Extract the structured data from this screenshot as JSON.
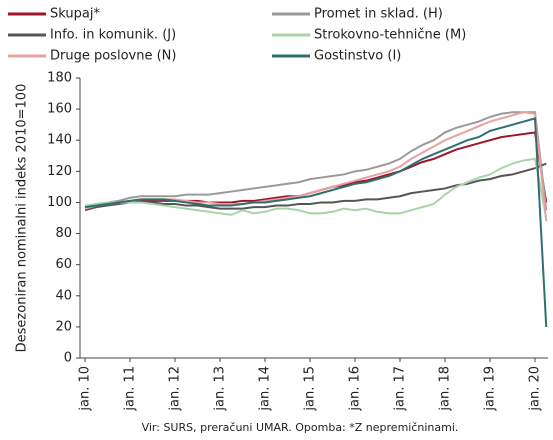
{
  "chart_data": {
    "type": "line",
    "y_label": "Desezoniran nominalni indeks 2010=100",
    "note": "Vir: SURS, preračuni UMAR. Opomba: *Z nepremičninami.",
    "categories": [
      "jan. 10",
      null,
      null,
      null,
      "jan. 11",
      null,
      null,
      null,
      "jan. 12",
      null,
      null,
      null,
      "jan. 13",
      null,
      null,
      null,
      "jan. 14",
      null,
      null,
      null,
      "jan. 15",
      null,
      null,
      null,
      "jan. 16",
      null,
      null,
      null,
      "jan. 17",
      null,
      null,
      null,
      "jan. 18",
      null,
      null,
      null,
      "jan. 19",
      null,
      null,
      null,
      "jan. 20",
      null
    ],
    "series": [
      {
        "name": "Skupaj*",
        "color": "#a0142c",
        "values": [
          97,
          98,
          99,
          100,
          100,
          101,
          101,
          101,
          101,
          101,
          101,
          100,
          100,
          100,
          101,
          101,
          102,
          103,
          104,
          104,
          106,
          108,
          110,
          111,
          113,
          114,
          116,
          118,
          120,
          123,
          126,
          128,
          131,
          134,
          136,
          138,
          140,
          142,
          143,
          144,
          145,
          100
        ]
      },
      {
        "name": "Promet in sklad. (H)",
        "color": "#9a9a9a",
        "values": [
          97,
          99,
          100,
          101,
          103,
          104,
          104,
          104,
          104,
          105,
          105,
          105,
          106,
          107,
          108,
          109,
          110,
          111,
          112,
          113,
          115,
          116,
          117,
          118,
          120,
          121,
          123,
          125,
          128,
          133,
          137,
          140,
          145,
          148,
          150,
          152,
          155,
          157,
          158,
          158,
          158,
          95
        ]
      },
      {
        "name": "Info. in komunik. (J)",
        "color": "#555555",
        "values": [
          95,
          97,
          98,
          99,
          100,
          100,
          100,
          99,
          99,
          98,
          98,
          97,
          96,
          96,
          96,
          97,
          97,
          98,
          98,
          99,
          99,
          100,
          100,
          101,
          101,
          102,
          102,
          103,
          104,
          106,
          107,
          108,
          109,
          111,
          112,
          114,
          115,
          117,
          118,
          120,
          122,
          125
        ]
      },
      {
        "name": "Strokovno-tehnične (M)",
        "color": "#a8d5a8",
        "values": [
          98,
          99,
          100,
          100,
          100,
          100,
          99,
          98,
          97,
          96,
          95,
          94,
          93,
          92,
          95,
          93,
          94,
          96,
          96,
          95,
          93,
          93,
          94,
          96,
          95,
          96,
          94,
          93,
          93,
          95,
          97,
          99,
          105,
          110,
          113,
          116,
          118,
          122,
          125,
          127,
          128,
          90
        ]
      },
      {
        "name": "Druge poslovne (N)",
        "color": "#e8a0a0",
        "values": [
          96,
          98,
          99,
          100,
          101,
          102,
          102,
          102,
          102,
          101,
          100,
          100,
          99,
          99,
          99,
          100,
          101,
          102,
          103,
          104,
          106,
          108,
          110,
          112,
          114,
          116,
          118,
          120,
          123,
          128,
          132,
          136,
          140,
          143,
          146,
          149,
          152,
          154,
          156,
          158,
          157,
          88
        ]
      },
      {
        "name": "Gostinstvo (I)",
        "color": "#2e7070",
        "values": [
          97,
          98,
          99,
          100,
          101,
          102,
          102,
          102,
          101,
          100,
          99,
          98,
          98,
          98,
          99,
          100,
          100,
          101,
          102,
          103,
          104,
          106,
          108,
          110,
          112,
          113,
          115,
          117,
          120,
          124,
          128,
          131,
          134,
          137,
          140,
          142,
          146,
          148,
          150,
          152,
          154,
          20
        ]
      }
    ],
    "ylim": [
      0,
      180
    ],
    "yticks": [
      0,
      20,
      40,
      60,
      80,
      100,
      120,
      140,
      160,
      180
    ],
    "grid": false
  }
}
